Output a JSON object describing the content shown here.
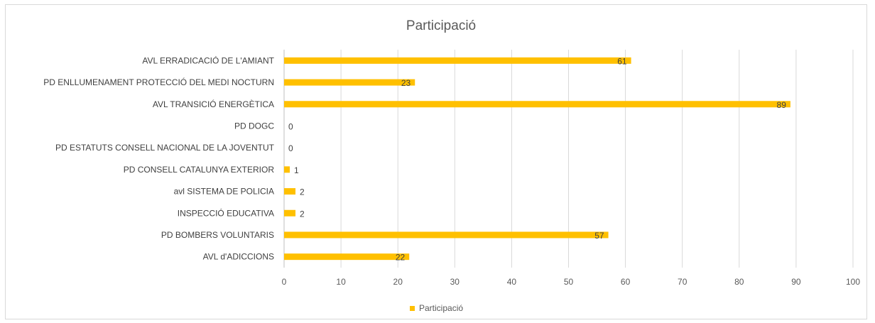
{
  "chart_data": {
    "type": "bar",
    "orientation": "horizontal",
    "title": "Participació",
    "categories": [
      "AVL ERRADICACIÓ DE L'AMIANT",
      "PD ENLLUMENAMENT PROTECCIÓ DEL MEDI NOCTURN",
      "AVL TRANSICIÓ ENERGÈTICA",
      "PD DOGC",
      "PD ESTATUTS CONSELL NACIONAL DE LA JOVENTUT",
      "PD CONSELL CATALUNYA EXTERIOR",
      "avl SISTEMA DE POLICIA",
      "INSPECCIÓ EDUCATIVA",
      "PD BOMBERS VOLUNTARIS",
      "AVL d'ADICCIONS"
    ],
    "series": [
      {
        "name": "Participació",
        "values": [
          61,
          23,
          89,
          0,
          0,
          1,
          2,
          2,
          57,
          22
        ],
        "color": "#FFC000"
      }
    ],
    "xticks": [
      0,
      10,
      20,
      30,
      40,
      50,
      60,
      70,
      80,
      90,
      100
    ],
    "xlim": [
      0,
      100
    ],
    "xlabel": "",
    "ylabel": "",
    "grid": true,
    "gridColor": "#d9d9d9",
    "data_labels": true,
    "legend_position": "bottom"
  }
}
